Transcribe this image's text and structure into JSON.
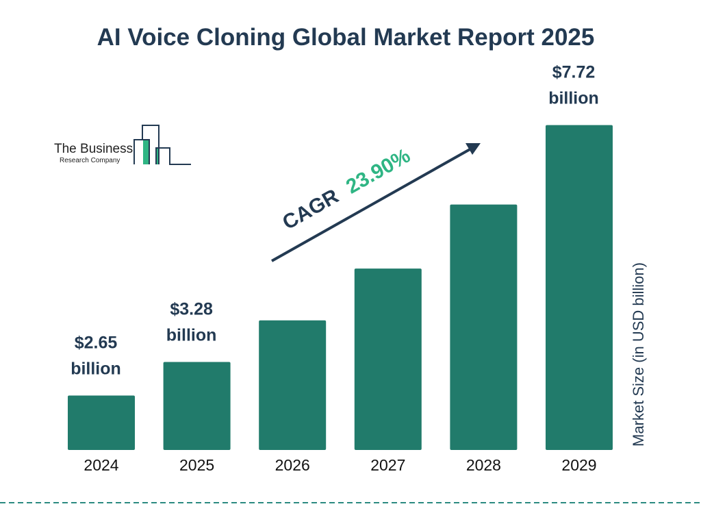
{
  "title": "AI Voice Cloning Global Market Report 2025",
  "logo": {
    "line1": "The Business",
    "line2": "Research Company"
  },
  "colors": {
    "bar": "#217b6b",
    "text": "#233a52",
    "accent": "#2fb584",
    "divider": "#2a8a80"
  },
  "cagr": {
    "label": "CAGR",
    "value": "23.90%"
  },
  "chart_data": {
    "type": "bar",
    "title": "AI Voice Cloning Global Market Report 2025",
    "categories": [
      "2024",
      "2025",
      "2026",
      "2027",
      "2028",
      "2029"
    ],
    "values": [
      2.65,
      3.28,
      4.06,
      5.03,
      6.23,
      7.72
    ],
    "data_labels": [
      {
        "line1": "$2.65",
        "line2": "billion"
      },
      {
        "line1": "$3.28",
        "line2": "billion"
      },
      null,
      null,
      null,
      {
        "line1": "$7.72",
        "line2": "billion"
      }
    ],
    "xlabel": "",
    "ylabel": "Market Size (in USD billion)",
    "grid": false,
    "legend": "none"
  }
}
